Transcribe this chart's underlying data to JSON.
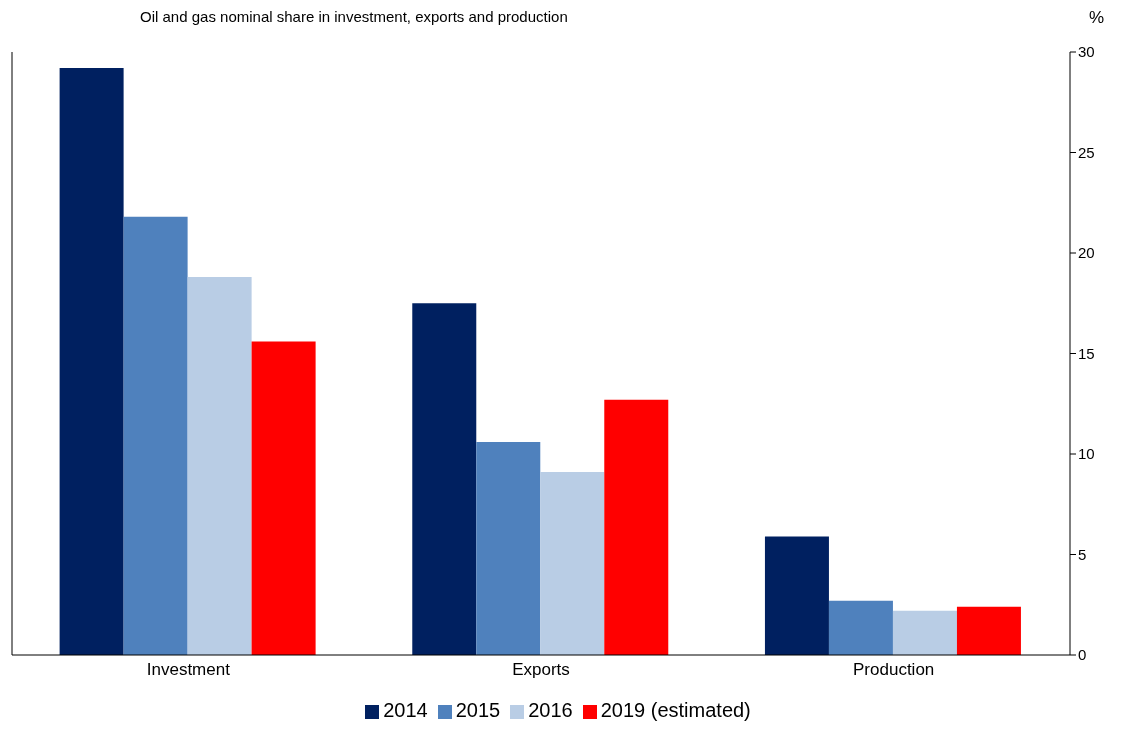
{
  "chart_data": {
    "type": "bar",
    "title": "Oil and gas nominal share in investment, exports and production",
    "ylabel": "%",
    "categories": [
      "Investment",
      "Exports",
      "Production"
    ],
    "series": [
      {
        "name": "2014",
        "color": "#002060",
        "values": [
          29.2,
          17.5,
          5.9
        ]
      },
      {
        "name": "2015",
        "color": "#4f81bd",
        "values": [
          21.8,
          10.6,
          2.7
        ]
      },
      {
        "name": "2016",
        "color": "#b9cde5",
        "values": [
          18.8,
          9.1,
          2.2
        ]
      },
      {
        "name": "2019 (estimated)",
        "color": "#ff0000",
        "values": [
          15.6,
          12.7,
          2.4
        ]
      }
    ],
    "ylim": [
      0,
      30
    ],
    "yticks": [
      0,
      5,
      10,
      15,
      20,
      25,
      30
    ],
    "grid": false,
    "legend": "bottom"
  }
}
